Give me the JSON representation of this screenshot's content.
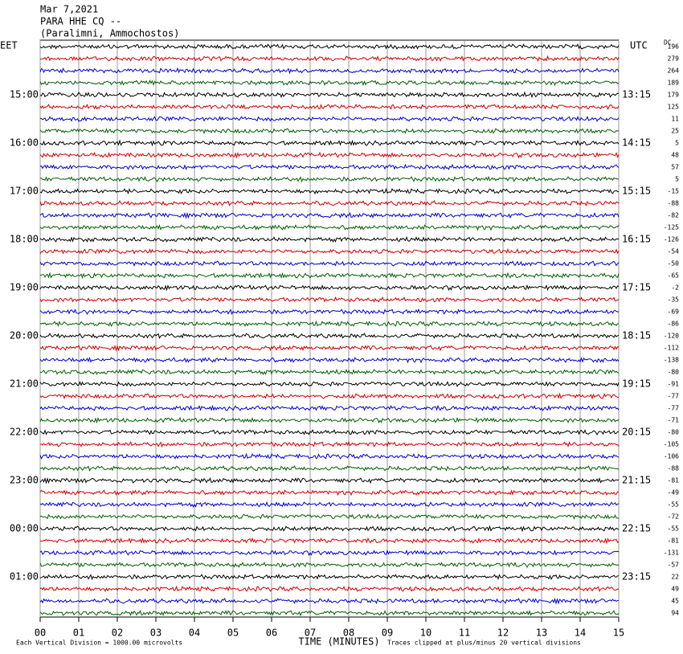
{
  "header": {
    "date": "Mar 7,2021",
    "station": "PARA HHE CQ --",
    "location": "(Paralimni, Ammochostos)"
  },
  "left_axis": {
    "title": "EET",
    "labels": [
      "15:00",
      "16:00",
      "17:00",
      "18:00",
      "19:00",
      "20:00",
      "21:00",
      "22:00",
      "23:00",
      "00:00",
      "01:00"
    ]
  },
  "right_axis": {
    "title": "UTC",
    "labels": [
      "13:15",
      "14:15",
      "15:15",
      "16:15",
      "17:15",
      "18:15",
      "19:15",
      "20:15",
      "21:15",
      "22:15",
      "23:15"
    ]
  },
  "dc": {
    "title": "DC",
    "values": [
      196,
      279,
      264,
      189,
      179,
      125,
      11,
      25,
      5,
      48,
      57,
      5,
      -15,
      -88,
      -82,
      -125,
      -126,
      -54,
      -50,
      -65,
      -2,
      -35,
      -69,
      -86,
      -120,
      -112,
      -138,
      -80,
      -91,
      -77,
      -77,
      -71,
      -80,
      -105,
      -106,
      -88,
      -81,
      -49,
      -55,
      -72,
      -55,
      -81,
      -131,
      -57,
      22,
      49,
      45,
      94
    ]
  },
  "trace_colors": [
    "#000000",
    "#d00000",
    "#0000d0",
    "#006000"
  ],
  "x_axis": {
    "title": "TIME (MINUTES)",
    "xlim": [
      0,
      15
    ],
    "xticks": [
      {
        "value": 0,
        "label": "00"
      },
      {
        "value": 1,
        "label": "01"
      },
      {
        "value": 2,
        "label": "02"
      },
      {
        "value": 3,
        "label": "03"
      },
      {
        "value": 4,
        "label": "04"
      },
      {
        "value": 5,
        "label": "05"
      },
      {
        "value": 6,
        "label": "06"
      },
      {
        "value": 7,
        "label": "07"
      },
      {
        "value": 8,
        "label": "08"
      },
      {
        "value": 9,
        "label": "09"
      },
      {
        "value": 10,
        "label": "10"
      },
      {
        "value": 11,
        "label": "11"
      },
      {
        "value": 12,
        "label": "12"
      },
      {
        "value": 13,
        "label": "13"
      },
      {
        "value": 14,
        "label": "14"
      },
      {
        "value": 15,
        "label": "15"
      }
    ]
  },
  "footer": {
    "scale": "Each Vertical Division = 1000.00 microvolts",
    "clip": "Traces clipped at plus/minus 20 vertical divisions"
  }
}
